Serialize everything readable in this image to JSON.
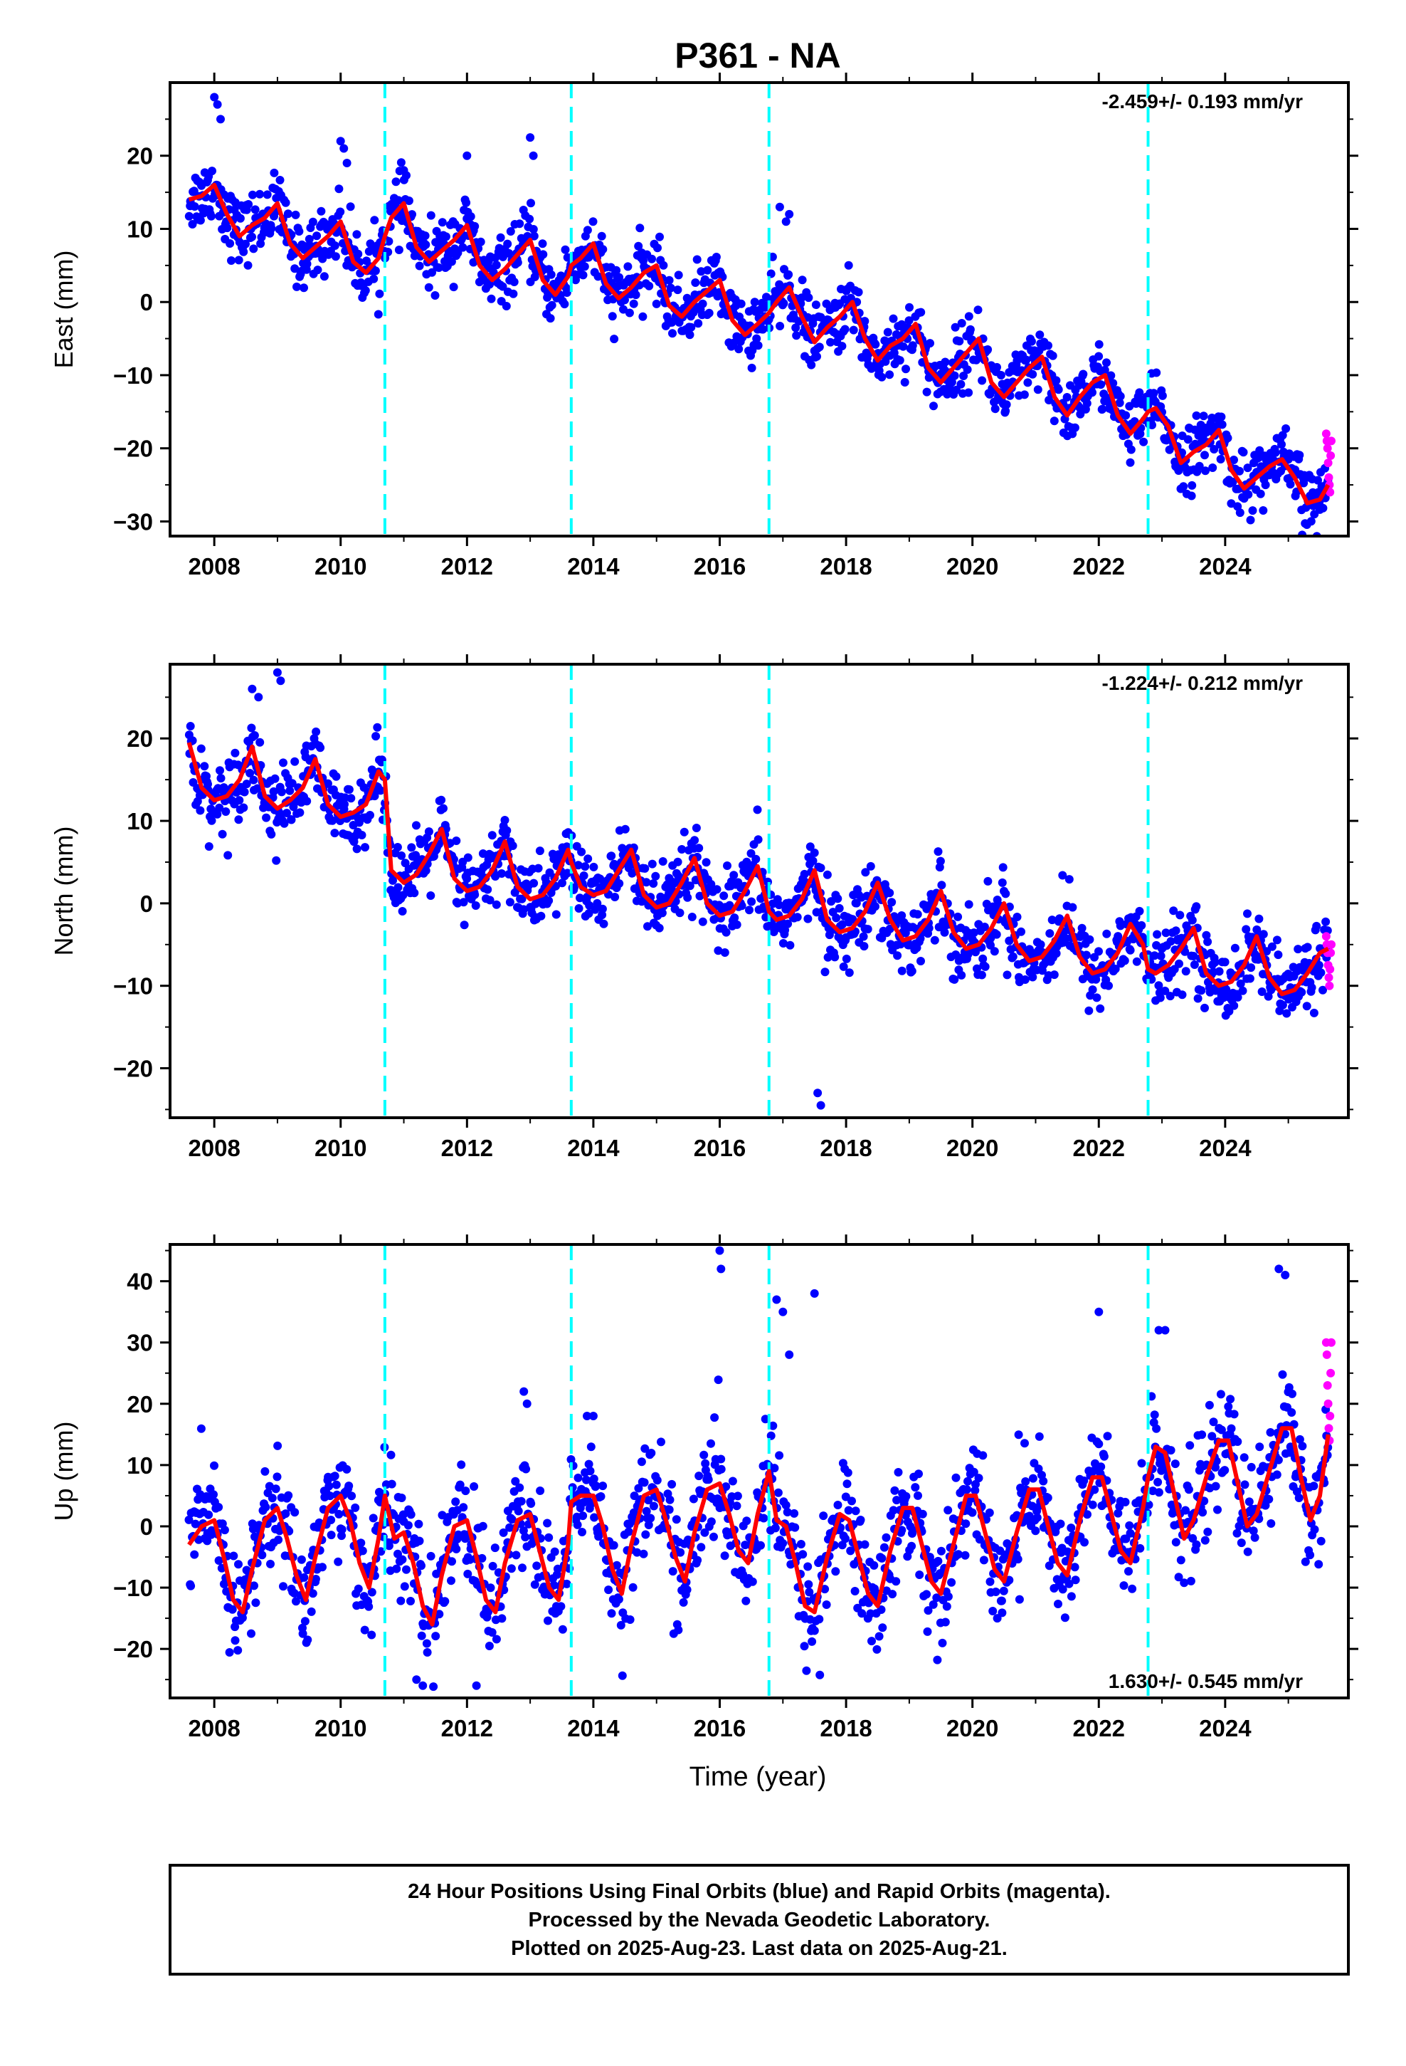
{
  "figure": {
    "title": "P361 - NA",
    "xlabel": "Time (year)",
    "footer": [
      "24 Hour Positions Using Final Orbits (blue) and Rapid Orbits (magenta).",
      "Processed by the Nevada Geodetic Laboratory.",
      "Plotted on 2025-Aug-23. Last data on 2025-Aug-21."
    ]
  },
  "colors": {
    "final_orbits": "#0000ff",
    "rapid_orbits": "#ff00ff",
    "model": "#ff0000",
    "equipment_change": "#00ffff"
  },
  "chart_data": [
    {
      "type": "scatter",
      "ylabel": "East (mm)",
      "xlim": [
        2007.3,
        2025.95
      ],
      "ylim": [
        -32,
        30
      ],
      "yticks": [
        -30,
        -20,
        -10,
        0,
        10,
        20
      ],
      "xticks": [
        2008,
        2010,
        2012,
        2014,
        2016,
        2018,
        2020,
        2022,
        2024
      ],
      "data_start": 2007.6,
      "data_end": 2025.63,
      "rate_label": "-2.459+/- 0.193 mm/yr",
      "rate_position": "top-right",
      "offsets": [
        2010.7,
        2013.65,
        2016.78,
        2022.78
      ],
      "model": {
        "x": [
          2007.6,
          2007.8,
          2008.0,
          2008.2,
          2008.4,
          2008.6,
          2008.8,
          2009.0,
          2009.2,
          2009.4,
          2009.6,
          2009.8,
          2010.0,
          2010.2,
          2010.4,
          2010.6,
          2010.7,
          2010.8,
          2011.0,
          2011.2,
          2011.4,
          2011.6,
          2011.8,
          2012.0,
          2012.2,
          2012.4,
          2012.6,
          2012.8,
          2013.0,
          2013.2,
          2013.4,
          2013.6,
          2013.65,
          2013.8,
          2014.0,
          2014.2,
          2014.4,
          2014.6,
          2014.8,
          2015.0,
          2015.2,
          2015.4,
          2015.6,
          2015.8,
          2016.0,
          2016.2,
          2016.4,
          2016.6,
          2016.78,
          2016.9,
          2017.1,
          2017.3,
          2017.5,
          2017.7,
          2017.9,
          2018.1,
          2018.3,
          2018.5,
          2018.7,
          2018.9,
          2019.1,
          2019.3,
          2019.5,
          2019.7,
          2019.9,
          2020.1,
          2020.3,
          2020.5,
          2020.7,
          2020.9,
          2021.1,
          2021.3,
          2021.5,
          2021.7,
          2021.9,
          2022.1,
          2022.3,
          2022.5,
          2022.7,
          2022.78,
          2022.9,
          2023.1,
          2023.3,
          2023.5,
          2023.7,
          2023.9,
          2024.1,
          2024.3,
          2024.5,
          2024.7,
          2024.9,
          2025.1,
          2025.3,
          2025.5,
          2025.63
        ],
        "y": [
          14,
          14.5,
          16,
          12,
          9,
          10.5,
          11.5,
          13.5,
          8,
          6,
          7.5,
          9,
          11,
          5.5,
          4,
          6,
          9,
          11.5,
          13.5,
          7.5,
          5.5,
          7,
          8.5,
          10.5,
          5,
          3,
          4.5,
          6.5,
          8.5,
          3,
          1,
          3.5,
          5,
          6,
          8,
          2.5,
          0.5,
          2,
          4,
          5,
          -0.5,
          -2,
          0,
          1.5,
          3,
          -2.5,
          -4.5,
          -3,
          -1.5,
          0,
          2,
          -2,
          -5.5,
          -3.5,
          -2,
          0,
          -5,
          -8,
          -6,
          -5,
          -3,
          -9,
          -11,
          -9,
          -7,
          -5,
          -11,
          -13,
          -11,
          -9,
          -7.5,
          -13,
          -15.5,
          -13,
          -11,
          -10,
          -15.5,
          -18,
          -16,
          -15,
          -14.5,
          -17,
          -22,
          -20.5,
          -19.5,
          -17.5,
          -23,
          -25.5,
          -24,
          -22.5,
          -21.5,
          -24,
          -27.5,
          -27,
          -25
        ]
      },
      "scatter_spread": 2.2,
      "outliers": {
        "x": [
          2008.0,
          2008.05,
          2008.1,
          2010.0,
          2010.05,
          2010.1,
          2011.0,
          2012.0,
          2013.0,
          2013.05,
          2016.95,
          2017.05,
          2017.1
        ],
        "y": [
          28,
          27,
          25,
          22,
          21,
          19,
          18,
          20,
          22.5,
          20,
          13,
          11,
          12
        ]
      },
      "rapid": {
        "x": [
          2025.6,
          2025.61,
          2025.62,
          2025.63,
          2025.64,
          2025.65,
          2025.66,
          2025.67,
          2025.68
        ],
        "y": [
          -18,
          -19,
          -20,
          -22,
          -24,
          -25,
          -26,
          -21,
          -19
        ]
      }
    },
    {
      "type": "scatter",
      "ylabel": "North (mm)",
      "xlim": [
        2007.3,
        2025.95
      ],
      "ylim": [
        -26,
        29
      ],
      "yticks": [
        -20,
        -10,
        0,
        10,
        20
      ],
      "xticks": [
        2008,
        2010,
        2012,
        2014,
        2016,
        2018,
        2020,
        2022,
        2024
      ],
      "data_start": 2007.6,
      "data_end": 2025.63,
      "rate_label": "-1.224+/- 0.212 mm/yr",
      "rate_position": "top-right",
      "offsets": [
        2010.7,
        2013.65,
        2016.78,
        2022.78
      ],
      "model": {
        "x": [
          2007.6,
          2007.8,
          2008.0,
          2008.2,
          2008.4,
          2008.6,
          2008.8,
          2009.0,
          2009.2,
          2009.4,
          2009.6,
          2009.8,
          2010.0,
          2010.2,
          2010.4,
          2010.6,
          2010.7,
          2010.8,
          2011.0,
          2011.2,
          2011.4,
          2011.6,
          2011.8,
          2012.0,
          2012.2,
          2012.4,
          2012.6,
          2012.8,
          2013.0,
          2013.2,
          2013.4,
          2013.6,
          2013.65,
          2013.8,
          2014.0,
          2014.2,
          2014.4,
          2014.6,
          2014.8,
          2015.0,
          2015.2,
          2015.4,
          2015.6,
          2015.8,
          2016.0,
          2016.2,
          2016.4,
          2016.6,
          2016.78,
          2016.9,
          2017.1,
          2017.3,
          2017.5,
          2017.7,
          2017.9,
          2018.1,
          2018.3,
          2018.5,
          2018.7,
          2018.9,
          2019.1,
          2019.3,
          2019.5,
          2019.7,
          2019.9,
          2020.1,
          2020.3,
          2020.5,
          2020.7,
          2020.9,
          2021.1,
          2021.3,
          2021.5,
          2021.7,
          2021.9,
          2022.1,
          2022.3,
          2022.5,
          2022.7,
          2022.78,
          2022.9,
          2023.1,
          2023.3,
          2023.5,
          2023.7,
          2023.9,
          2024.1,
          2024.3,
          2024.5,
          2024.7,
          2024.9,
          2025.1,
          2025.3,
          2025.5,
          2025.63
        ],
        "y": [
          19.5,
          14,
          12.5,
          13,
          15,
          19,
          13,
          11.5,
          12.5,
          14,
          17.5,
          12,
          10.5,
          11,
          12,
          16,
          15,
          4,
          2.5,
          3.5,
          6,
          9,
          3,
          1.5,
          2,
          4,
          7.5,
          2,
          0.5,
          1,
          3,
          6.5,
          5,
          2,
          1,
          1.5,
          4,
          6.5,
          1,
          -0.5,
          0,
          2.5,
          5.5,
          0,
          -1.5,
          -1,
          1.5,
          4.5,
          -1,
          -2,
          -1.5,
          0.5,
          4,
          -2,
          -3.5,
          -3,
          -1,
          2.5,
          -2,
          -4.5,
          -4,
          -2,
          1.5,
          -3.5,
          -5.5,
          -5,
          -3,
          0,
          -5,
          -7,
          -6.5,
          -4.5,
          -1.5,
          -6.5,
          -8.5,
          -8,
          -6,
          -2.5,
          -5,
          -8,
          -8.5,
          -7.5,
          -5.5,
          -3,
          -8.5,
          -10,
          -9.5,
          -7.5,
          -4,
          -9,
          -11,
          -10.5,
          -8.5,
          -6,
          -5.5
        ]
      },
      "scatter_spread": 2.2,
      "outliers": {
        "x": [
          2008.6,
          2008.7,
          2009.0,
          2009.05,
          2017.55,
          2017.6
        ],
        "y": [
          26,
          25,
          28,
          27,
          -23,
          -24.5
        ]
      },
      "rapid": {
        "x": [
          2025.6,
          2025.61,
          2025.62,
          2025.63,
          2025.64,
          2025.65,
          2025.66,
          2025.67,
          2025.68
        ],
        "y": [
          -4,
          -5,
          -6,
          -7.5,
          -9,
          -10,
          -8,
          -6,
          -5
        ]
      }
    },
    {
      "type": "scatter",
      "ylabel": "Up (mm)",
      "xlim": [
        2007.3,
        2025.95
      ],
      "ylim": [
        -28,
        46
      ],
      "yticks": [
        -20,
        -10,
        0,
        10,
        20,
        30,
        40
      ],
      "xticks": [
        2008,
        2010,
        2012,
        2014,
        2016,
        2018,
        2020,
        2022,
        2024
      ],
      "data_start": 2007.6,
      "data_end": 2025.63,
      "rate_label": "1.630+/- 0.545 mm/yr",
      "rate_position": "bottom-right",
      "offsets": [
        2010.7,
        2013.65,
        2016.78,
        2022.78
      ],
      "model": {
        "x": [
          2007.6,
          2007.8,
          2008.0,
          2008.15,
          2008.3,
          2008.45,
          2008.6,
          2008.8,
          2009.0,
          2009.15,
          2009.3,
          2009.45,
          2009.6,
          2009.8,
          2010.0,
          2010.15,
          2010.3,
          2010.45,
          2010.6,
          2010.7,
          2010.85,
          2011.0,
          2011.15,
          2011.3,
          2011.45,
          2011.6,
          2011.8,
          2012.0,
          2012.15,
          2012.3,
          2012.45,
          2012.6,
          2012.8,
          2013.0,
          2013.15,
          2013.3,
          2013.45,
          2013.6,
          2013.65,
          2013.8,
          2014.0,
          2014.15,
          2014.3,
          2014.45,
          2014.6,
          2014.8,
          2015.0,
          2015.15,
          2015.3,
          2015.45,
          2015.6,
          2015.8,
          2016.0,
          2016.15,
          2016.3,
          2016.45,
          2016.6,
          2016.78,
          2016.9,
          2017.05,
          2017.2,
          2017.35,
          2017.5,
          2017.7,
          2017.9,
          2018.05,
          2018.2,
          2018.35,
          2018.5,
          2018.7,
          2018.9,
          2019.05,
          2019.2,
          2019.35,
          2019.5,
          2019.7,
          2019.9,
          2020.05,
          2020.2,
          2020.35,
          2020.5,
          2020.7,
          2020.9,
          2021.05,
          2021.2,
          2021.35,
          2021.5,
          2021.7,
          2021.9,
          2022.05,
          2022.2,
          2022.35,
          2022.5,
          2022.7,
          2022.78,
          2022.9,
          2023.05,
          2023.2,
          2023.35,
          2023.5,
          2023.7,
          2023.9,
          2024.05,
          2024.2,
          2024.35,
          2024.5,
          2024.7,
          2024.9,
          2025.05,
          2025.2,
          2025.35,
          2025.5,
          2025.63
        ],
        "y": [
          -3,
          0,
          1,
          -5,
          -12,
          -14,
          -7,
          1,
          3,
          -2,
          -8,
          -12,
          -5,
          3,
          5,
          1,
          -6,
          -10,
          -2,
          5,
          -2,
          -1,
          -6,
          -13,
          -16,
          -8,
          0,
          1,
          -5,
          -12,
          -14,
          -6,
          1,
          2,
          -4,
          -10,
          -12,
          -3,
          4,
          5,
          5,
          0,
          -7,
          -11,
          -3,
          5,
          6,
          1,
          -5,
          -9,
          -1,
          6,
          7,
          2,
          -4,
          -6,
          2,
          9,
          1,
          0,
          -6,
          -13,
          -14,
          -5,
          2,
          1,
          -5,
          -11,
          -13,
          -4,
          3,
          3,
          -3,
          -9,
          -11,
          -3,
          5,
          5,
          -1,
          -7,
          -9,
          -1,
          6,
          6,
          0,
          -6,
          -8,
          1,
          8,
          8,
          2,
          -4,
          -6,
          3,
          8,
          13,
          12,
          5,
          -2,
          1,
          8,
          14,
          14,
          7,
          0,
          2,
          9,
          16,
          16,
          8,
          1,
          5,
          15
        ]
      },
      "scatter_spread": 4.5,
      "outliers": {
        "x": [
          2012.9,
          2012.95,
          2013.9,
          2014.0,
          2016.0,
          2016.02,
          2016.9,
          2017.0,
          2017.1,
          2017.5,
          2022.0,
          2022.95,
          2023.05,
          2024.85,
          2024.95,
          2011.2,
          2011.3,
          2012.15
        ],
        "y": [
          22,
          20,
          18,
          18,
          45,
          42,
          37,
          35,
          28,
          38,
          35,
          32,
          32,
          42,
          41,
          -25,
          -26,
          -26
        ]
      },
      "rapid": {
        "x": [
          2025.6,
          2025.61,
          2025.62,
          2025.63,
          2025.64,
          2025.65,
          2025.66,
          2025.67,
          2025.68
        ],
        "y": [
          30,
          28,
          23,
          20,
          16,
          14,
          18,
          25,
          30
        ]
      }
    }
  ]
}
